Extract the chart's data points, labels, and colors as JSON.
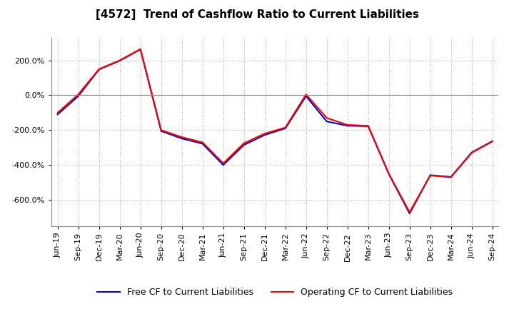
{
  "title": "[4572]  Trend of Cashflow Ratio to Current Liabilities",
  "x_labels": [
    "Jun-19",
    "Sep-19",
    "Dec-19",
    "Mar-20",
    "Jun-20",
    "Sep-20",
    "Dec-20",
    "Mar-21",
    "Jun-21",
    "Sep-21",
    "Dec-21",
    "Mar-22",
    "Jun-22",
    "Sep-22",
    "Dec-22",
    "Mar-23",
    "Jun-23",
    "Sep-23",
    "Dec-23",
    "Mar-24",
    "Jun-24",
    "Sep-24"
  ],
  "operating_cf": [
    -100,
    5,
    150,
    200,
    265,
    -200,
    -240,
    -270,
    -390,
    -275,
    -220,
    -185,
    5,
    -130,
    -170,
    -175,
    -450,
    -670,
    -460,
    -470,
    -330,
    -265
  ],
  "free_cf": [
    -110,
    -5,
    148,
    198,
    263,
    -205,
    -248,
    -278,
    -400,
    -285,
    -228,
    -190,
    -5,
    -150,
    -175,
    -177,
    -452,
    -678,
    -458,
    -468,
    -328,
    -263
  ],
  "ylim": [
    -750,
    330
  ],
  "yticks": [
    200,
    0,
    -200,
    -400,
    -600
  ],
  "operating_color": "#ff0000",
  "free_color": "#0000cc",
  "background_color": "#ffffff",
  "grid_color": "#aaaaaa",
  "legend_operating": "Operating CF to Current Liabilities",
  "legend_free": "Free CF to Current Liabilities",
  "title_fontsize": 11,
  "tick_fontsize": 8,
  "legend_fontsize": 9
}
